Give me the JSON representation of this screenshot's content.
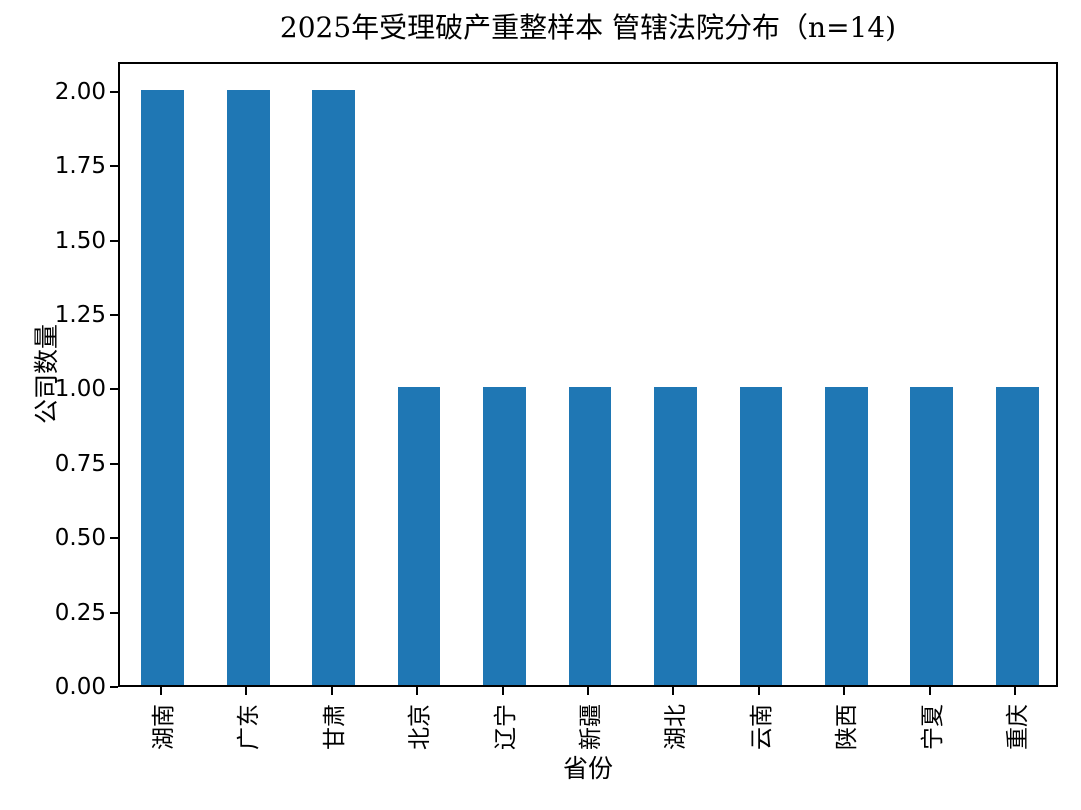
{
  "chart_data": {
    "type": "bar",
    "title": "2025年受理破产重整样本 管辖法院分布（n=14)",
    "xlabel": "省份",
    "ylabel": "公司数量",
    "categories": [
      "湖南",
      "广东",
      "甘肃",
      "北京",
      "辽宁",
      "新疆",
      "湖北",
      "云南",
      "陕西",
      "宁夏",
      "重庆"
    ],
    "values": [
      2,
      2,
      2,
      1,
      1,
      1,
      1,
      1,
      1,
      1,
      1
    ],
    "ylim": [
      0,
      2.1
    ],
    "yticks": [
      0,
      0.25,
      0.5,
      0.75,
      1,
      1.25,
      1.5,
      1.75,
      2
    ],
    "ytick_labels": [
      "0.00",
      "0.25",
      "0.50",
      "0.75",
      "1.00",
      "1.25",
      "1.50",
      "1.75",
      "2.00"
    ],
    "grid": false,
    "legend_position": "none",
    "bar_color": "#1f77b4",
    "axis_color": "#000000",
    "background_color": "#ffffff"
  }
}
